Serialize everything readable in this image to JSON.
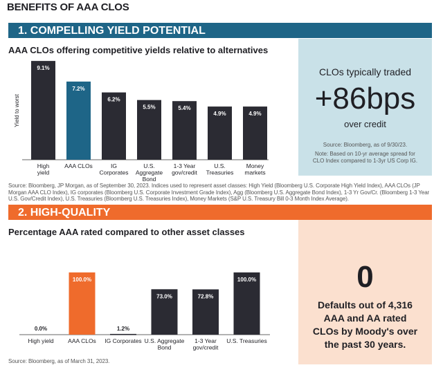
{
  "title": "BENEFITS OF AAA CLOS",
  "section1": {
    "header": "1. COMPELLING YIELD POTENTIAL",
    "subtitle": "AAA CLOs offering competitive yields relative to alternatives",
    "panel": {
      "line1": "CLOs typically traded",
      "big": "+86bps",
      "line2": "over credit",
      "source": "Source: Bloomberg, as of 9/30/23.",
      "note": "Note: Based on 10-yr average spread for CLO Index compared to 1-3yr US Corp IG."
    },
    "source": "Source: Bloomberg, JP Morgan, as of September 30, 2023. Indices used to represent asset classes: High Yield (Bloomberg U.S. Corporate High Yield Index), AAA CLOs (JP Morgan AAA CLO Index), IG corporates (Bloomberg U.S. Corporate Investment Grade Index), Agg (Bloomberg U.S. Aggregate Bond Index), 1-3 Yr Gov/Cr. (Bloomberg 1-3 Year U.S. Gov/Credit Index), U.S. Treasuries (Bloomberg U.S. Treasuries Index), Money Markets (S&P U.S. Treasury Bill 0-3 Month Index Average)."
  },
  "section2": {
    "header": "2. HIGH-QUALITY",
    "subtitle": "Percentage AAA rated compared to other asset classes",
    "panel": {
      "big": "0",
      "text": "Defaults out of 4,316 AAA and AA rated CLOs by Moody's over the past 30 years."
    },
    "source": "Source: Bloomberg, as of March 31, 2023."
  },
  "colors": {
    "dark": "#2b2b33",
    "blue": "#1e6587",
    "orange": "#ef6b2c"
  },
  "chart_data": [
    {
      "type": "bar",
      "ylabel": "Yield to worst",
      "categories": [
        "High yield",
        "AAA CLOs",
        "IG Corporates",
        "U.S. Aggregate Bond",
        "1-3 Year gov/credit",
        "U.S. Treasuries",
        "Money markets"
      ],
      "values": [
        9.1,
        7.2,
        6.2,
        5.5,
        5.4,
        4.9,
        4.9
      ],
      "labels": [
        "9.1%",
        "7.2%",
        "6.2%",
        "5.5%",
        "5.4%",
        "4.9%",
        "4.9%"
      ],
      "highlight": 1,
      "grid": false
    },
    {
      "type": "bar",
      "categories": [
        "High yield",
        "AAA CLOs",
        "IG Corporates",
        "U.S. Aggregate Bond",
        "1-3 Year gov/credit",
        "U.S. Treasuries"
      ],
      "values": [
        0.0,
        100.0,
        1.2,
        73.0,
        72.8,
        100.0
      ],
      "labels": [
        "0.0%",
        "100.0%",
        "1.2%",
        "73.0%",
        "72.8%",
        "100.0%"
      ],
      "highlight": 1,
      "grid": false
    }
  ]
}
